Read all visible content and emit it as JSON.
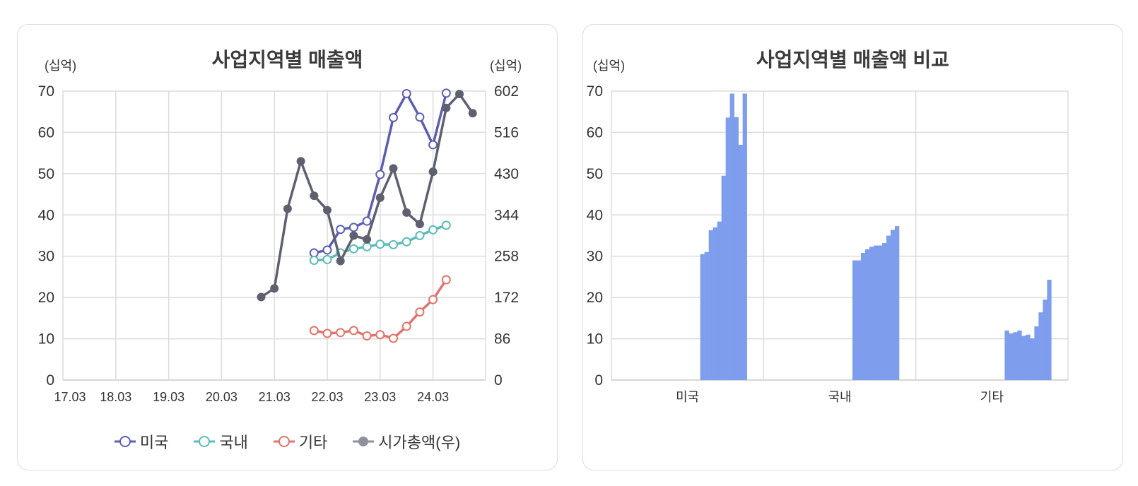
{
  "chart_data": [
    {
      "type": "line",
      "title": "사업지역별 매출액",
      "ylabel_left": "(십억)",
      "ylabel_right": "(십억)",
      "ylim_left": [
        0,
        70
      ],
      "ylim_right": [
        0,
        602
      ],
      "y_ticks_left": [
        "0",
        "10",
        "20",
        "30",
        "40",
        "50",
        "60",
        "70"
      ],
      "y_ticks_right": [
        "0",
        "86",
        "172",
        "258",
        "344",
        "430",
        "516",
        "602"
      ],
      "x_ticks": [
        "17.03",
        "18.03",
        "19.03",
        "20.03",
        "21.03",
        "22.03",
        "23.03",
        "24.03"
      ],
      "grid": true,
      "legend_position": "bottom",
      "series": [
        {
          "name": "미국",
          "axis": "left",
          "color": "#5c5fb0",
          "marker": "open",
          "x": [
            "21.12",
            "22.03",
            "22.06",
            "22.09",
            "22.12",
            "23.03",
            "23.06",
            "23.09",
            "23.12",
            "24.03",
            "24.06"
          ],
          "values": [
            30.8,
            31.5,
            36.5,
            37.0,
            38.5,
            49.8,
            63.6,
            69.4,
            63.7,
            57.0,
            69.5
          ]
        },
        {
          "name": "국내",
          "axis": "left",
          "color": "#5bbcb7",
          "marker": "open",
          "x": [
            "21.12",
            "22.03",
            "22.06",
            "22.09",
            "22.12",
            "23.03",
            "23.06",
            "23.09",
            "23.12",
            "24.03",
            "24.06"
          ],
          "values": [
            29.0,
            29.2,
            30.8,
            31.8,
            32.3,
            32.9,
            32.8,
            33.5,
            35.0,
            36.4,
            37.5
          ]
        },
        {
          "name": "기타",
          "axis": "left",
          "color": "#e0746c",
          "marker": "open",
          "x": [
            "21.12",
            "22.03",
            "22.06",
            "22.09",
            "22.12",
            "23.03",
            "23.06",
            "23.09",
            "23.12",
            "24.03",
            "24.06"
          ],
          "values": [
            12.0,
            11.3,
            11.5,
            12.0,
            10.7,
            11.0,
            10.1,
            13.0,
            16.5,
            19.5,
            24.3
          ]
        },
        {
          "name": "시가총액(우)",
          "axis": "right",
          "color": "#5e6070",
          "marker": "filled",
          "x": [
            "20.12",
            "21.03",
            "21.06",
            "21.09",
            "21.12",
            "22.03",
            "22.06",
            "22.09",
            "22.12",
            "23.03",
            "23.06",
            "23.09",
            "23.12",
            "24.03",
            "24.06",
            "24.09",
            "24.12"
          ],
          "values": [
            173,
            191,
            357,
            456,
            384,
            354,
            248,
            301,
            293,
            380,
            441,
            349,
            325,
            434,
            567,
            596,
            556
          ]
        }
      ]
    },
    {
      "type": "bar",
      "title": "사업지역별 매출액 비교",
      "ylabel": "(십억)",
      "ylim": [
        0,
        70
      ],
      "y_ticks": [
        "0",
        "10",
        "20",
        "30",
        "40",
        "50",
        "60",
        "70"
      ],
      "categories": [
        "미국",
        "국내",
        "기타"
      ],
      "color": "#7f9ded",
      "grid": true,
      "groups": [
        [
          30.5,
          31.0,
          36.3,
          37.0,
          38.4,
          49.5,
          63.6,
          69.4,
          63.7,
          57.0,
          69.4
        ],
        [
          29.0,
          29.0,
          30.8,
          31.7,
          32.3,
          32.6,
          32.6,
          33.2,
          35.0,
          36.4,
          37.3
        ],
        [
          12.0,
          11.3,
          11.6,
          12.0,
          10.7,
          11.0,
          10.1,
          13.0,
          16.4,
          19.5,
          24.3
        ]
      ]
    }
  ]
}
